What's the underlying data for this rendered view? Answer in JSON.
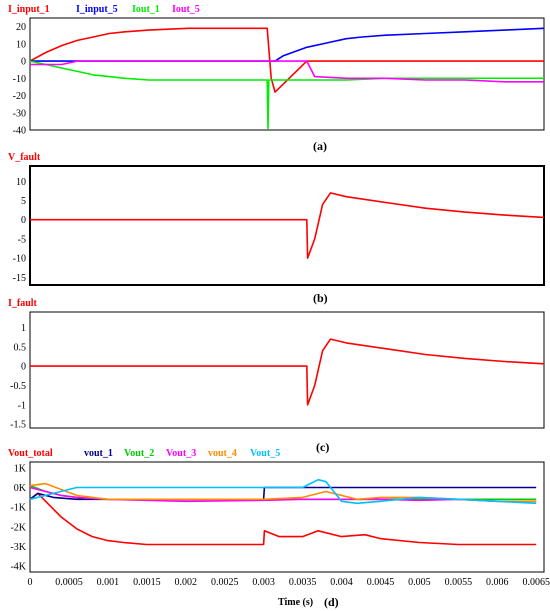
{
  "chart_data": [
    {
      "type": "line",
      "caption": "(a)",
      "ylim": [
        -40,
        25
      ],
      "yticks": [
        20,
        10,
        0,
        -10,
        -20,
        -30,
        -40
      ],
      "xlim": [
        0,
        0.0065
      ],
      "series": [
        {
          "name": "I_input_1",
          "color": "#ff0000",
          "x": [
            0,
            0.0002,
            0.0004,
            0.0006,
            0.0008,
            0.001,
            0.0012,
            0.0015,
            0.002,
            0.0025,
            0.003,
            0.00305,
            0.0031,
            0.0035,
            0.0036,
            0.004,
            0.0045,
            0.005,
            0.0055,
            0.006,
            0.0065
          ],
          "y": [
            0,
            5,
            9,
            12,
            14,
            16,
            17,
            18,
            19,
            19,
            19,
            -10,
            -18,
            0,
            0,
            0,
            0,
            0,
            0,
            0,
            0
          ]
        },
        {
          "name": "I_input_5",
          "color": "#0000ff",
          "x": [
            0,
            0.003,
            0.0031,
            0.0032,
            0.0035,
            0.0038,
            0.004,
            0.0042,
            0.0045,
            0.005,
            0.0055,
            0.006,
            0.0065
          ],
          "y": [
            0,
            0,
            0,
            3,
            8,
            11,
            13,
            14,
            15,
            16,
            17,
            18,
            19
          ]
        },
        {
          "name": "Iout_1",
          "color": "#00ee00",
          "x": [
            0,
            0.0002,
            0.0004,
            0.0006,
            0.0008,
            0.001,
            0.0012,
            0.0015,
            0.002,
            0.0025,
            0.003,
            0.00301,
            0.00302,
            0.00303,
            0.0035,
            0.004,
            0.0045,
            0.005,
            0.0055,
            0.006,
            0.0065
          ],
          "y": [
            0,
            -2,
            -4,
            -6,
            -8,
            -9,
            -10,
            -11,
            -11,
            -11,
            -11,
            -39,
            -11,
            -11,
            -11,
            -11,
            -10,
            -10,
            -10,
            -10,
            -10
          ]
        },
        {
          "name": "Iout_5",
          "color": "#ff00ff",
          "x": [
            0,
            0.0002,
            0.0004,
            0.0006,
            0.003,
            0.0031,
            0.0035,
            0.0036,
            0.004,
            0.0045,
            0.005,
            0.0055,
            0.006,
            0.0065
          ],
          "y": [
            -2,
            -2,
            -2,
            0,
            0,
            0,
            0,
            -9,
            -10,
            -10,
            -11,
            -11,
            -12,
            -12
          ]
        }
      ]
    },
    {
      "type": "line",
      "caption": "(b)",
      "ylim": [
        -17,
        14
      ],
      "yticks": [
        10,
        5,
        0,
        -5,
        -10,
        -15
      ],
      "xlim": [
        0,
        0.0065
      ],
      "series": [
        {
          "name": "V_fault",
          "color": "#ff0000",
          "x": [
            0,
            0.003,
            0.0035,
            0.00351,
            0.0036,
            0.0037,
            0.0038,
            0.004,
            0.0045,
            0.005,
            0.0055,
            0.006,
            0.0065
          ],
          "y": [
            0,
            0,
            0,
            -10,
            -5,
            4,
            7,
            6,
            4.5,
            3,
            2,
            1.2,
            0.6
          ]
        }
      ]
    },
    {
      "type": "line",
      "caption": "(c)",
      "ylim": [
        -1.6,
        1.4
      ],
      "yticks": [
        1,
        0.5,
        0,
        -0.5,
        -1,
        -1.5
      ],
      "xlim": [
        0,
        0.0065
      ],
      "series": [
        {
          "name": "I_fault",
          "color": "#ff0000",
          "x": [
            0,
            0.003,
            0.0035,
            0.00351,
            0.0036,
            0.0037,
            0.0038,
            0.004,
            0.0045,
            0.005,
            0.0055,
            0.006,
            0.0065
          ],
          "y": [
            0,
            0,
            0,
            -1,
            -0.5,
            0.4,
            0.7,
            0.6,
            0.45,
            0.3,
            0.2,
            0.12,
            0.06
          ]
        }
      ]
    },
    {
      "type": "line",
      "caption": "(d)",
      "xlabel": "Time (s)",
      "ylim": [
        -4300,
        1300
      ],
      "yticks": [
        1000,
        0,
        -1000,
        -2000,
        -3000,
        -4000
      ],
      "yticklabels": [
        "1K",
        "0K",
        "-1K",
        "-2K",
        "-3K",
        "-4K"
      ],
      "xlim": [
        0,
        0.0066
      ],
      "xticks": [
        0,
        0.0005,
        0.001,
        0.0015,
        0.002,
        0.0025,
        0.003,
        0.0035,
        0.004,
        0.0045,
        0.005,
        0.0055,
        0.006,
        0.0065
      ],
      "series": [
        {
          "name": "Vout_total",
          "color": "#ff0000",
          "x": [
            0,
            0.0001,
            0.0002,
            0.0004,
            0.0006,
            0.0008,
            0.001,
            0.0012,
            0.0015,
            0.002,
            0.0025,
            0.003,
            0.00301,
            0.0032,
            0.0035,
            0.0037,
            0.004,
            0.0043,
            0.0045,
            0.005,
            0.0055,
            0.006,
            0.0065
          ],
          "y": [
            -600,
            -300,
            -700,
            -1500,
            -2100,
            -2500,
            -2700,
            -2800,
            -2900,
            -2900,
            -2900,
            -2900,
            -2200,
            -2500,
            -2500,
            -2200,
            -2500,
            -2400,
            -2600,
            -2800,
            -2900,
            -2900,
            -2900
          ]
        },
        {
          "name": "vout_1",
          "color": "#00008b",
          "x": [
            0,
            0.0001,
            0.0003,
            0.0006,
            0.001,
            0.0015,
            0.002,
            0.0025,
            0.003,
            0.00301,
            0.0035,
            0.004,
            0.0045,
            0.005,
            0.0055,
            0.006,
            0.0065
          ],
          "y": [
            -600,
            -300,
            -500,
            -600,
            -600,
            -600,
            -600,
            -600,
            -600,
            0,
            0,
            0,
            0,
            0,
            0,
            0,
            0
          ]
        },
        {
          "name": "Vout_2",
          "color": "#00cc00",
          "x": [
            0,
            0.0002,
            0.0004,
            0.0006,
            0.001,
            0.002,
            0.003,
            0.0035,
            0.004,
            0.0045,
            0.005,
            0.0055,
            0.006,
            0.0065
          ],
          "y": [
            100,
            -200,
            -400,
            -500,
            -600,
            -600,
            -600,
            -600,
            -600,
            -600,
            -600,
            -600,
            -600,
            -600
          ]
        },
        {
          "name": "Vout_3",
          "color": "#ff00ff",
          "x": [
            0,
            0.0002,
            0.0004,
            0.0006,
            0.001,
            0.002,
            0.003,
            0.0035,
            0.004,
            0.0045,
            0.005,
            0.0055,
            0.006,
            0.0065
          ],
          "y": [
            0,
            -200,
            -400,
            -500,
            -600,
            -700,
            -650,
            -600,
            -600,
            -600,
            -650,
            -600,
            -700,
            -700
          ]
        },
        {
          "name": "vout_4",
          "color": "#ff8c00",
          "x": [
            0,
            0.0002,
            0.0004,
            0.0006,
            0.001,
            0.0015,
            0.002,
            0.0025,
            0.003,
            0.0035,
            0.0038,
            0.004,
            0.0042,
            0.0045,
            0.005,
            0.0055,
            0.006,
            0.0065
          ],
          "y": [
            100,
            200,
            -100,
            -400,
            -600,
            -600,
            -600,
            -600,
            -600,
            -500,
            -200,
            -400,
            -600,
            -500,
            -500,
            -600,
            -700,
            -700
          ]
        },
        {
          "name": "Vout_5",
          "color": "#00bfff",
          "x": [
            0,
            0.0003,
            0.0006,
            0.001,
            0.002,
            0.003,
            0.0035,
            0.0037,
            0.0038,
            0.004,
            0.0042,
            0.0045,
            0.005,
            0.0055,
            0.006,
            0.0065
          ],
          "y": [
            -600,
            -300,
            0,
            0,
            0,
            0,
            0,
            400,
            300,
            -700,
            -800,
            -700,
            -500,
            -600,
            -700,
            -800
          ]
        }
      ]
    }
  ]
}
